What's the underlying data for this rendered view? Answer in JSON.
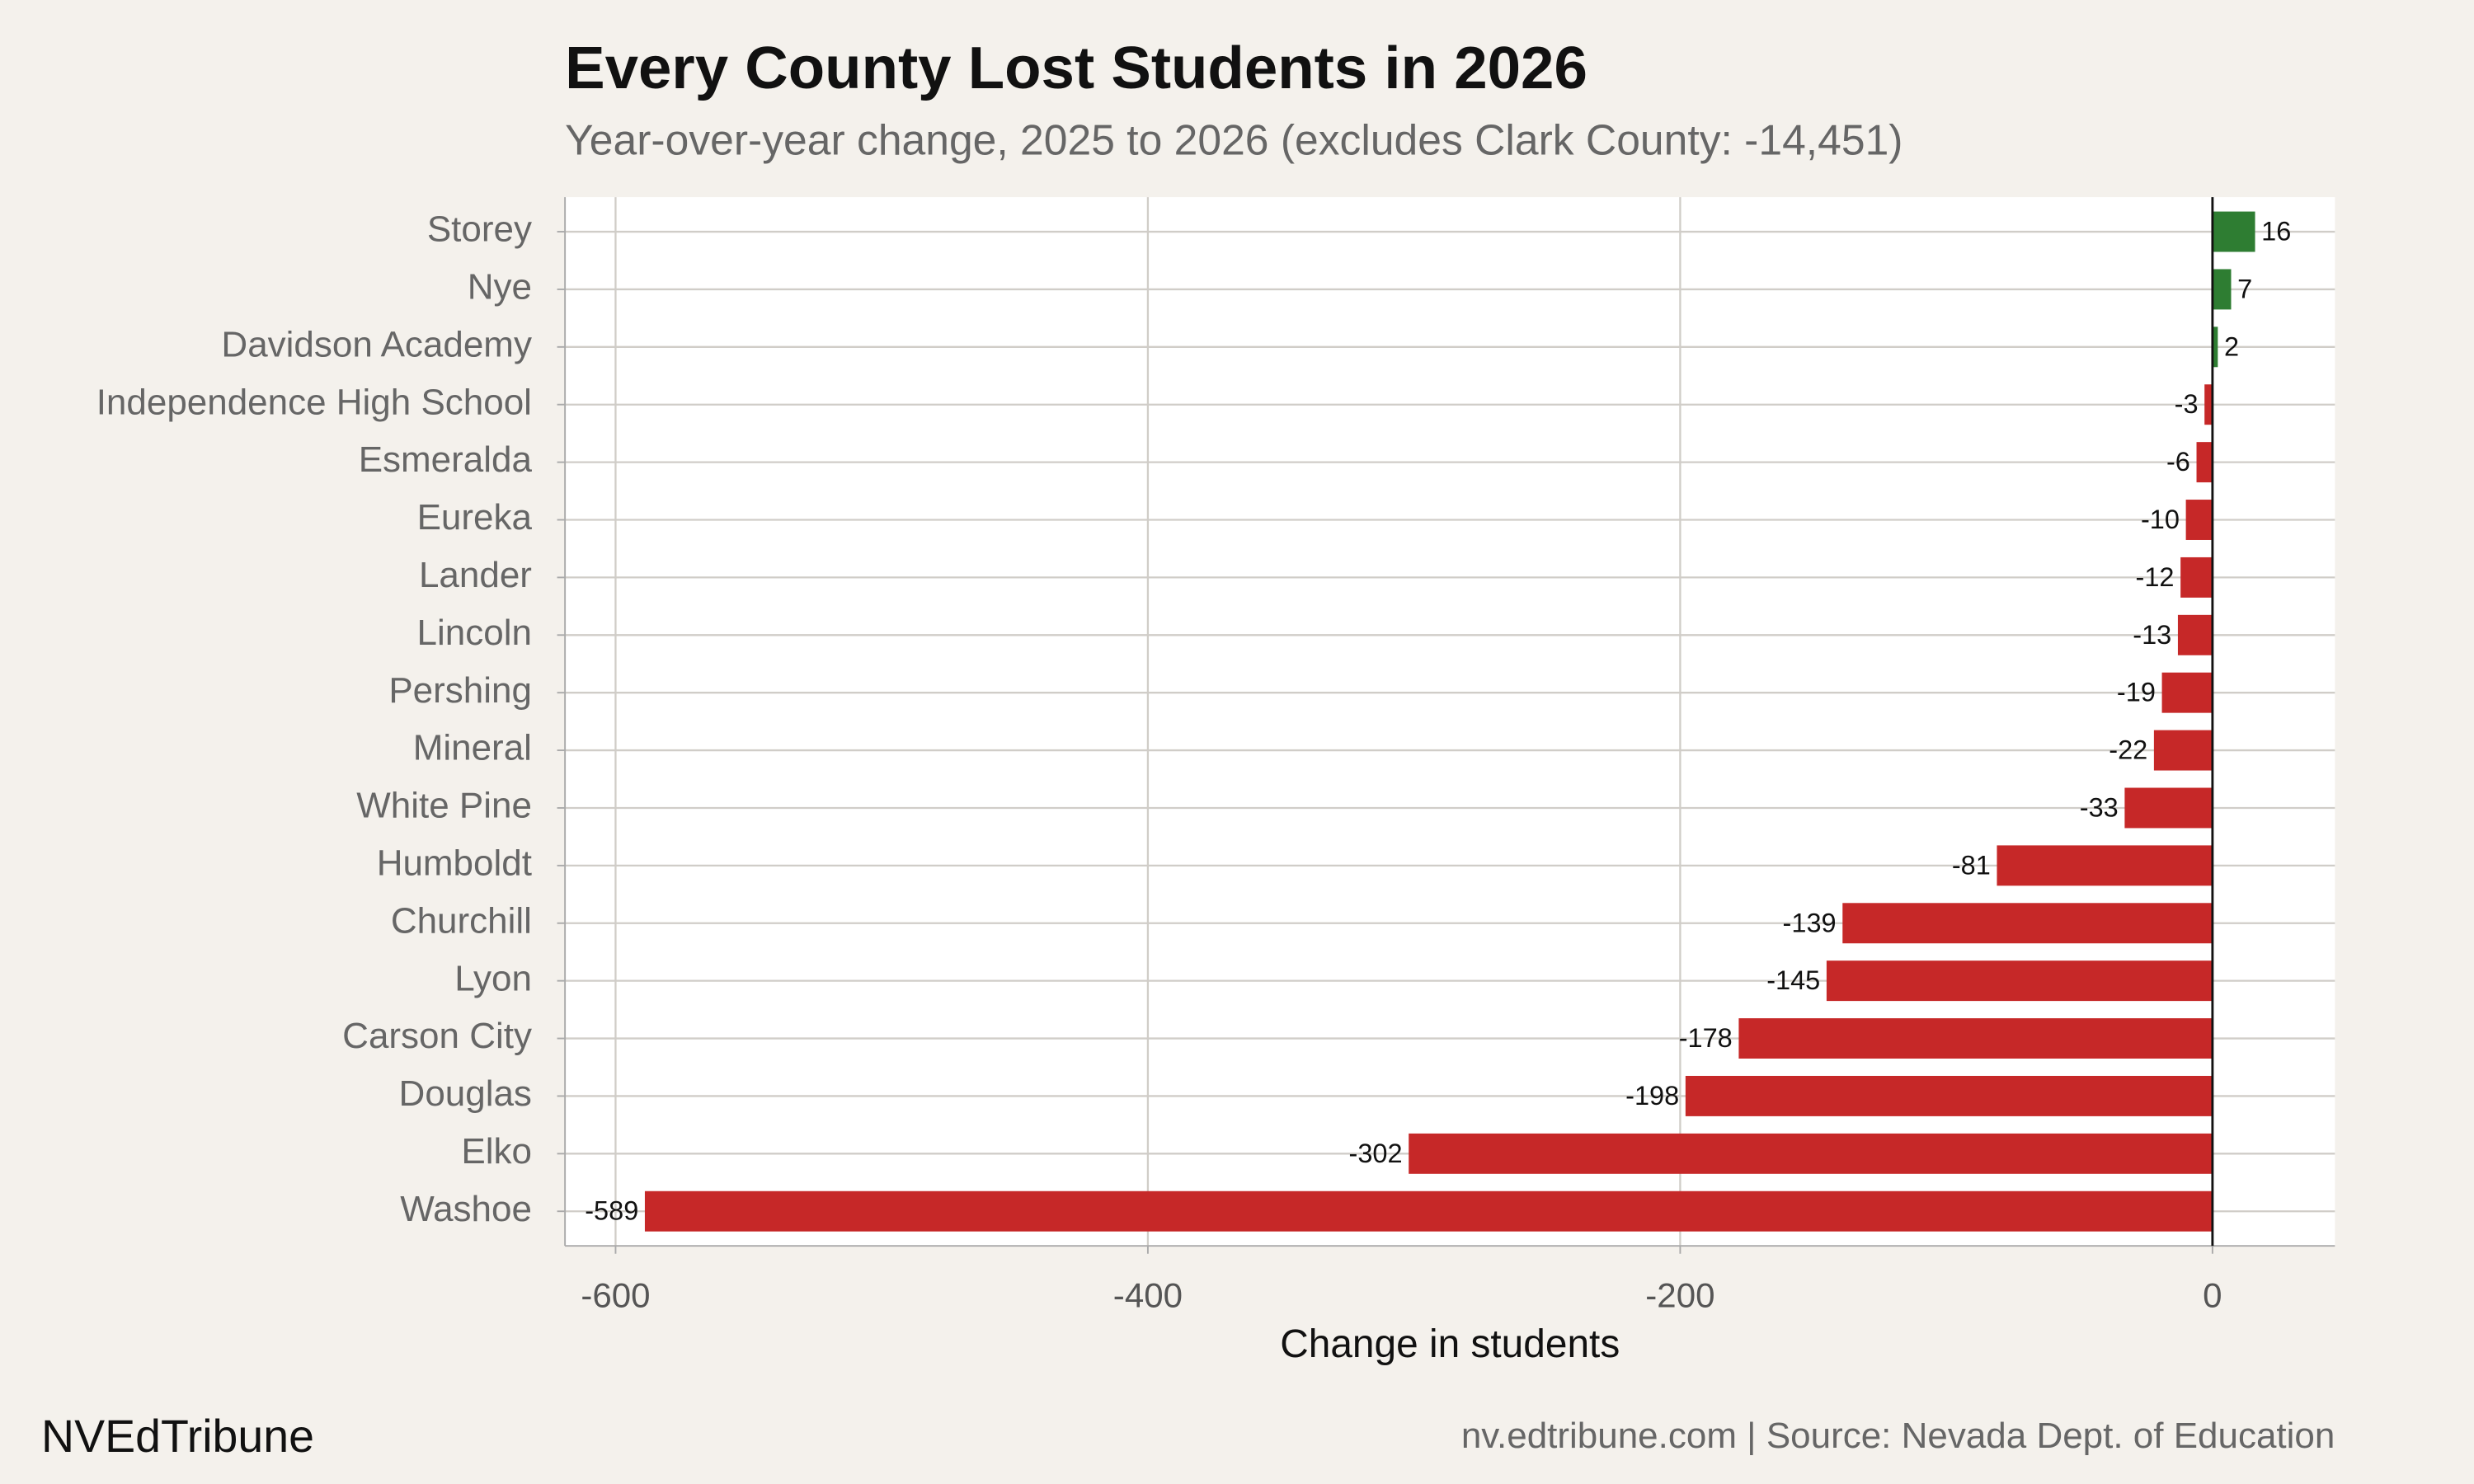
{
  "chart_data": {
    "type": "bar",
    "orientation": "horizontal",
    "title": "Every County Lost Students in 2026",
    "subtitle": "Year-over-year change, 2025 to 2026 (excludes Clark County: -14,451)",
    "xlabel": "Change in students",
    "brand": "NVEdTribune",
    "source": "nv.edtribune.com | Source: Nevada Dept. of Education",
    "categories": [
      "Storey",
      "Nye",
      "Davidson Academy",
      "Independence High School",
      "Esmeralda",
      "Eureka",
      "Lander",
      "Lincoln",
      "Pershing",
      "Mineral",
      "White Pine",
      "Humboldt",
      "Churchill",
      "Lyon",
      "Carson City",
      "Douglas",
      "Elko",
      "Washoe"
    ],
    "values": [
      16,
      7,
      2,
      -3,
      -6,
      -10,
      -12,
      -13,
      -19,
      -22,
      -33,
      -81,
      -139,
      -145,
      -178,
      -198,
      -302,
      -589
    ],
    "positive_color": "#2e7d32",
    "negative_color": "#c62828",
    "xlim": [
      -619,
      46
    ],
    "xticks": [
      -600,
      -400,
      -200,
      0
    ],
    "grid": true
  }
}
